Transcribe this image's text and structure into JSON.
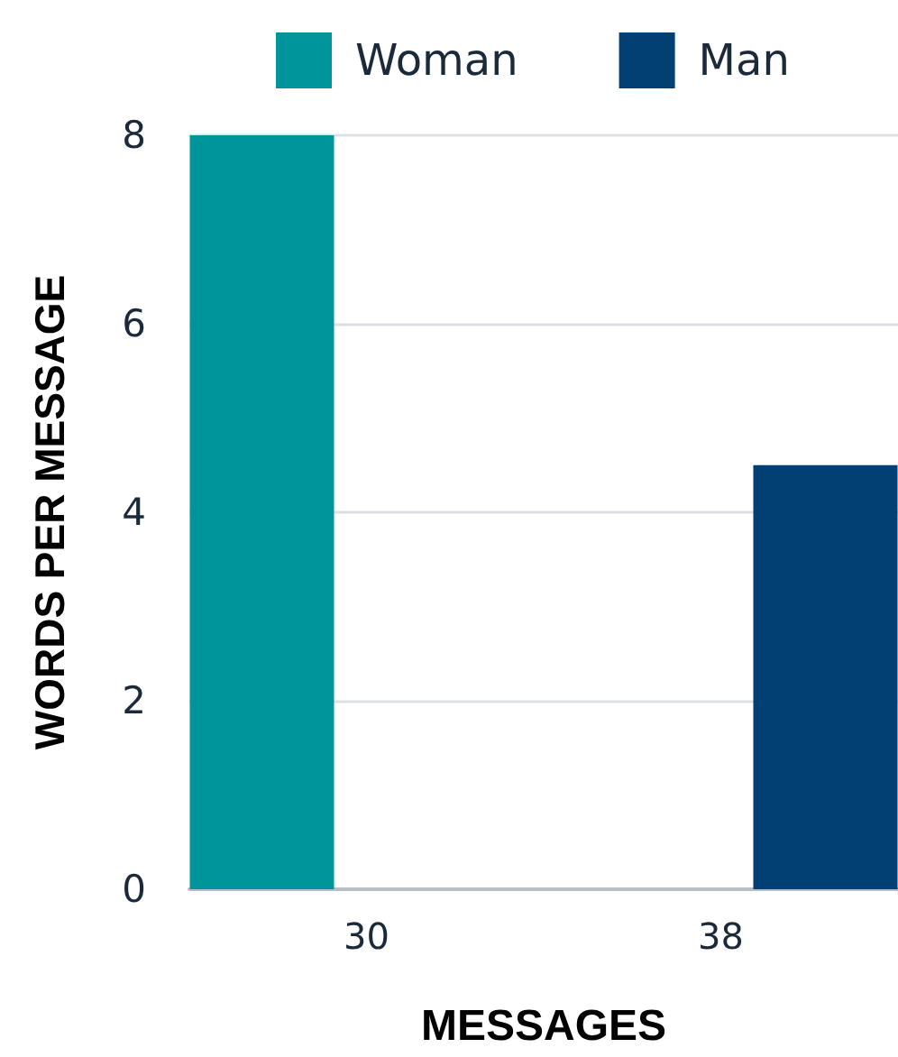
{
  "chart_data": {
    "type": "bar",
    "xlabel": "MESSAGES",
    "ylabel": "WORDS PER MESSAGE",
    "categories": [
      "30",
      "38"
    ],
    "series": [
      {
        "name": "Woman",
        "color": "#00959a",
        "values": [
          8,
          null
        ]
      },
      {
        "name": "Man",
        "color": "#023f73",
        "values": [
          null,
          4.5
        ]
      }
    ],
    "ylim": [
      0,
      8
    ],
    "yticks": [
      0,
      2,
      4,
      6,
      8
    ],
    "grid": "y",
    "legend": "top"
  }
}
